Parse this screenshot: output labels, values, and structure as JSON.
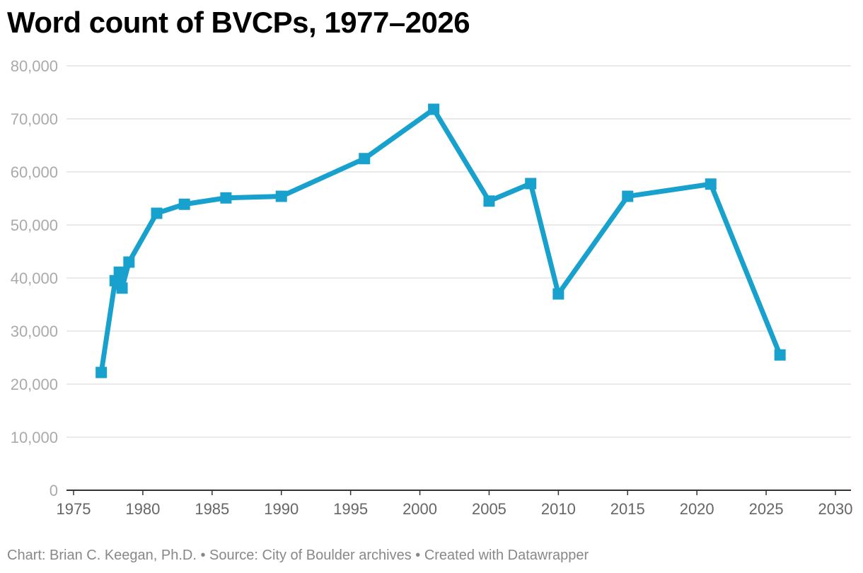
{
  "chart_data": {
    "type": "line",
    "title": "Word count of BVCPs, 1977–2026",
    "xlabel": "",
    "ylabel": "",
    "xlim": [
      1975,
      2030
    ],
    "ylim": [
      0,
      80000
    ],
    "x_ticks": [
      1975,
      1980,
      1985,
      1990,
      1995,
      2000,
      2005,
      2010,
      2015,
      2020,
      2025,
      2030
    ],
    "x_tick_labels": [
      "1975",
      "1980",
      "1985",
      "1990",
      "1995",
      "2000",
      "2005",
      "2010",
      "2015",
      "2020",
      "2025",
      "2030"
    ],
    "y_ticks": [
      0,
      10000,
      20000,
      30000,
      40000,
      50000,
      60000,
      70000,
      80000
    ],
    "y_tick_labels": [
      "0",
      "10,000",
      "20,000",
      "30,000",
      "40,000",
      "50,000",
      "60,000",
      "70,000",
      "80,000"
    ],
    "grid": true,
    "series": [
      {
        "name": "Word count",
        "color": "#18a1cd",
        "marker": "square",
        "x": [
          1977,
          1978,
          1978.3,
          1978.5,
          1979,
          1981,
          1983,
          1986,
          1990,
          1996,
          2001,
          2005,
          2008,
          2010,
          2015,
          2021,
          2026
        ],
        "y": [
          22200,
          39500,
          41100,
          38100,
          43000,
          52200,
          53900,
          55100,
          55400,
          62500,
          71800,
          54500,
          57800,
          37000,
          55400,
          57700,
          25500
        ]
      }
    ]
  },
  "footer": {
    "text": "Chart: Brian C. Keegan, Ph.D. • Source: City of Boulder archives • Created with Datawrapper"
  },
  "colors": {
    "line": "#18a1cd",
    "grid": "#e3e3e3",
    "axis": "#333333",
    "y_tick_text": "#aaaaaa",
    "x_tick_text": "#666666"
  }
}
